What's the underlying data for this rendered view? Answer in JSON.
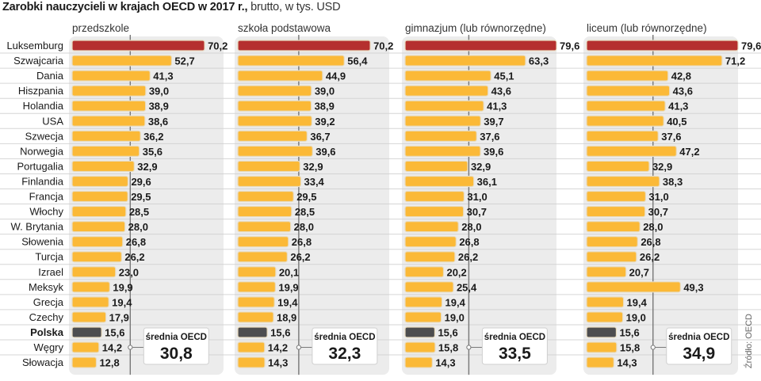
{
  "title": {
    "bold": "Zarobki nauczycieli w krajach OECD w 2017 r.,",
    "rest": " brutto, w tys. USD"
  },
  "source": "Źródło: OECD",
  "colors": {
    "luxembourg": "#b5302f",
    "default": "#fbb937",
    "poland": "#4d4d4f",
    "panel_bg": "#ececec",
    "avg_line": "#777777"
  },
  "chart_data": {
    "type": "bar",
    "orientation": "horizontal",
    "title": "Zarobki nauczycieli w krajach OECD w 2017 r., brutto, w tys. USD",
    "categories": [
      "Luksemburg",
      "Szwajcaria",
      "Dania",
      "Hiszpania",
      "Holandia",
      "USA",
      "Szwecja",
      "Norwegia",
      "Portugalia",
      "Finlandia",
      "Francja",
      "Włochy",
      "W. Brytania",
      "Słowenia",
      "Turcja",
      "Izrael",
      "Meksyk",
      "Grecja",
      "Czechy",
      "Polska",
      "Węgry",
      "Słowacja"
    ],
    "highlight": {
      "Luksemburg": "luxembourg",
      "Polska": "poland"
    },
    "series": [
      {
        "name": "przedszkole",
        "average_label": "średnia OECD",
        "average": 30.8,
        "values": [
          70.2,
          52.7,
          41.3,
          39.0,
          38.9,
          38.6,
          36.2,
          35.6,
          32.9,
          29.6,
          29.5,
          28.5,
          28.0,
          26.8,
          26.2,
          23.0,
          19.9,
          19.4,
          17.9,
          15.6,
          14.2,
          12.8
        ]
      },
      {
        "name": "szkoła podstawowa",
        "average_label": "średnia OECD",
        "average": 32.3,
        "values": [
          70.2,
          56.4,
          44.9,
          39.0,
          38.9,
          39.2,
          36.7,
          39.6,
          32.9,
          33.4,
          29.5,
          28.5,
          28.0,
          26.8,
          26.2,
          20.1,
          19.9,
          19.4,
          18.9,
          15.6,
          14.2,
          14.3
        ]
      },
      {
        "name": "gimnazjum (lub równorzędne)",
        "average_label": "średnia OECD",
        "average": 33.5,
        "values": [
          79.6,
          63.3,
          45.1,
          43.6,
          41.3,
          39.7,
          37.6,
          39.6,
          32.9,
          36.1,
          31.0,
          30.7,
          28.0,
          26.8,
          26.2,
          20.2,
          25.4,
          19.4,
          19.0,
          15.6,
          15.8,
          14.3
        ]
      },
      {
        "name": "liceum (lub równorzędne)",
        "average_label": "średnia OECD",
        "average": 34.9,
        "values": [
          79.6,
          71.2,
          42.8,
          43.6,
          41.3,
          40.5,
          37.6,
          47.2,
          32.9,
          38.3,
          31.0,
          30.7,
          28.0,
          26.8,
          26.2,
          20.7,
          49.3,
          19.4,
          19.0,
          15.6,
          15.8,
          14.3
        ]
      }
    ],
    "value_format": "comma-decimal, 1 place",
    "xlabel": "",
    "ylabel": "",
    "grid": false,
    "legend": "none"
  }
}
